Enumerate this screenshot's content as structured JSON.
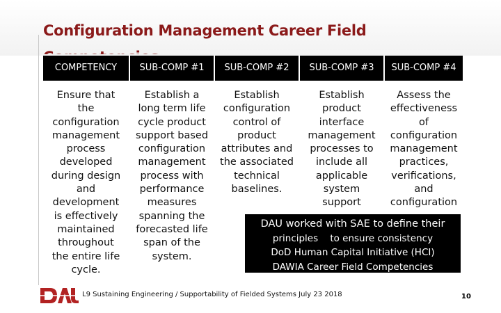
{
  "slide": {
    "title": "Configuration Management Career Field",
    "title_overflow": "Competencies"
  },
  "table": {
    "headers": [
      "COMPETENCY",
      "SUB-COMP #1",
      "SUB-COMP #2",
      "SUB-COMP #3",
      "SUB-COMP #4"
    ],
    "cells": [
      [
        "Ensure that",
        "the",
        "configuration",
        "management",
        "process",
        "developed",
        "during design",
        "and",
        "development",
        "is effectively",
        "maintained",
        "throughout",
        "the entire life",
        "cycle."
      ],
      [
        "Establish a",
        "long term life",
        "cycle product",
        "support based",
        "configuration",
        "management",
        "process with",
        "performance",
        "measures",
        "spanning the",
        "forecasted life",
        "span of the",
        "system."
      ],
      [
        "Establish",
        "configuration",
        "control of",
        "product",
        "attributes and",
        "the associated",
        "technical",
        "baselines."
      ],
      [
        "Establish",
        "product",
        "interface",
        "management",
        "processes to",
        "include all",
        "applicable",
        "system",
        "support"
      ],
      [
        "Assess the",
        "effectiveness",
        "of",
        "configuration",
        "management",
        "practices,",
        "verifications,",
        "and",
        "configuration"
      ]
    ]
  },
  "callout": {
    "lines": [
      "DAU worked with SAE to define their",
      "principles    to ensure consistency",
      "DoD Human Capital Initiative (HCI)",
      "DAWIA Career Field Competencies"
    ]
  },
  "footer": {
    "logo_text": "DAU",
    "text": "L9 Sustaining Engineering / Supportability of Fielded Systems July 23 2018",
    "page_number": "10"
  },
  "colors": {
    "title": "#8b1a1a",
    "header_bg": "#000000",
    "logo_red": "#b22222"
  }
}
